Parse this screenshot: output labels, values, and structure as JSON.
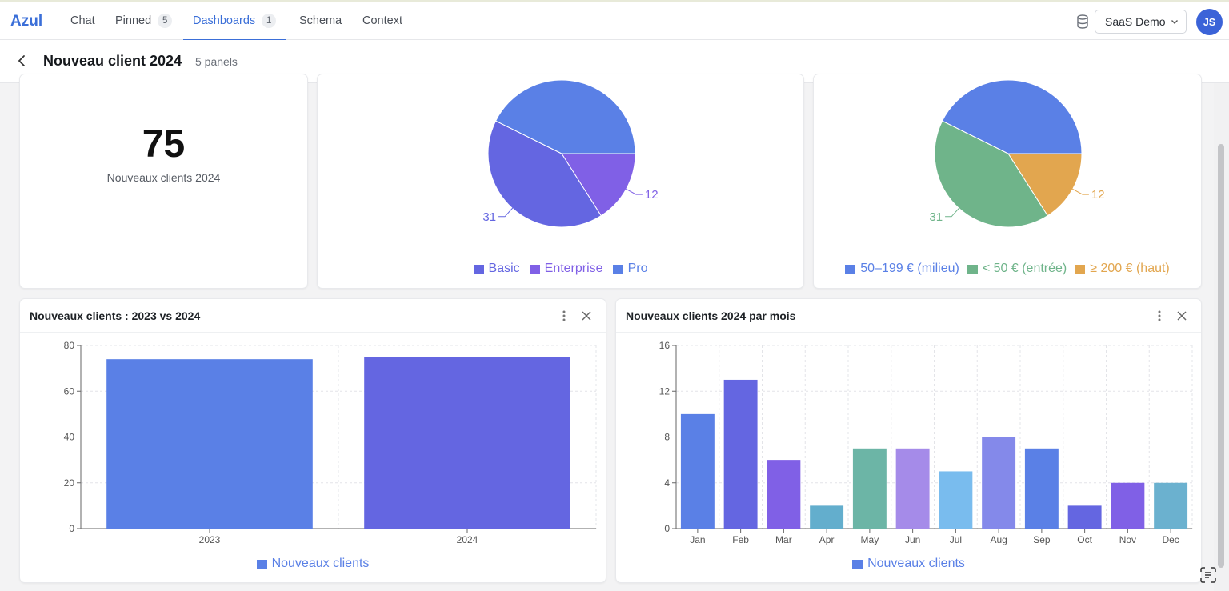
{
  "app": {
    "brand": "Azul"
  },
  "nav": {
    "tabs": [
      {
        "label": "Chat",
        "badge": ""
      },
      {
        "label": "Pinned",
        "badge": "5"
      },
      {
        "label": "Dashboards",
        "badge": "1",
        "active": true
      },
      {
        "label": "Schema",
        "badge": ""
      },
      {
        "label": "Context",
        "badge": ""
      }
    ],
    "workspace": "SaaS Demo",
    "avatar_initials": "JS"
  },
  "dashboard": {
    "title": "Nouveau client 2024",
    "panel_count": "5 panels"
  },
  "kpi": {
    "value": "75",
    "label": "Nouveaux clients 2024"
  },
  "panels": {
    "vs": {
      "title": "Nouveaux clients : 2023 vs 2024"
    },
    "monthly": {
      "title": "Nouveaux clients 2024 par mois"
    }
  },
  "chart_data": [
    {
      "type": "pie",
      "labels": [
        "Basic",
        "Enterprise",
        "Pro"
      ],
      "values": [
        31,
        12,
        32
      ],
      "data_labels": [
        "31",
        "12",
        ""
      ],
      "colors": [
        "#6466e1",
        "#8060e6",
        "#5a80e6"
      ],
      "legend_position": "bottom"
    },
    {
      "type": "pie",
      "labels": [
        "50–199 € (milieu)",
        "< 50 € (entrée)",
        "≥ 200 € (haut)"
      ],
      "values": [
        32,
        31,
        12
      ],
      "data_labels": [
        "",
        "31",
        "12"
      ],
      "colors": [
        "#5a80e6",
        "#6fb48a",
        "#e2a64f"
      ],
      "legend_position": "bottom"
    },
    {
      "type": "bar",
      "title": "Nouveaux clients : 2023 vs 2024",
      "categories": [
        "2023",
        "2024"
      ],
      "series": [
        {
          "name": "Nouveaux clients",
          "values": [
            74,
            75
          ]
        }
      ],
      "bar_colors": [
        "#5a80e6",
        "#6466e1"
      ],
      "legend_color": "#5a80e6",
      "ylim": [
        0,
        80
      ],
      "yticks": [
        0,
        20,
        40,
        60,
        80
      ],
      "grid": true,
      "legend_position": "bottom"
    },
    {
      "type": "bar",
      "title": "Nouveaux clients 2024 par mois",
      "categories": [
        "Jan",
        "Feb",
        "Mar",
        "Apr",
        "May",
        "Jun",
        "Jul",
        "Aug",
        "Sep",
        "Oct",
        "Nov",
        "Dec"
      ],
      "series": [
        {
          "name": "Nouveaux clients",
          "values": [
            10,
            13,
            6,
            2,
            7,
            7,
            5,
            8,
            7,
            2,
            4,
            4
          ]
        }
      ],
      "bar_colors": [
        "#5a80e6",
        "#6466e1",
        "#8060e6",
        "#63aecd",
        "#6cb5a6",
        "#a58be9",
        "#79bcee",
        "#8489ea",
        "#5a80e6",
        "#6466e1",
        "#8060e6",
        "#6bb1cf"
      ],
      "legend_color": "#5a80e6",
      "ylim": [
        0,
        16
      ],
      "yticks": [
        0,
        4,
        8,
        12,
        16
      ],
      "grid": true,
      "legend_position": "bottom"
    }
  ]
}
